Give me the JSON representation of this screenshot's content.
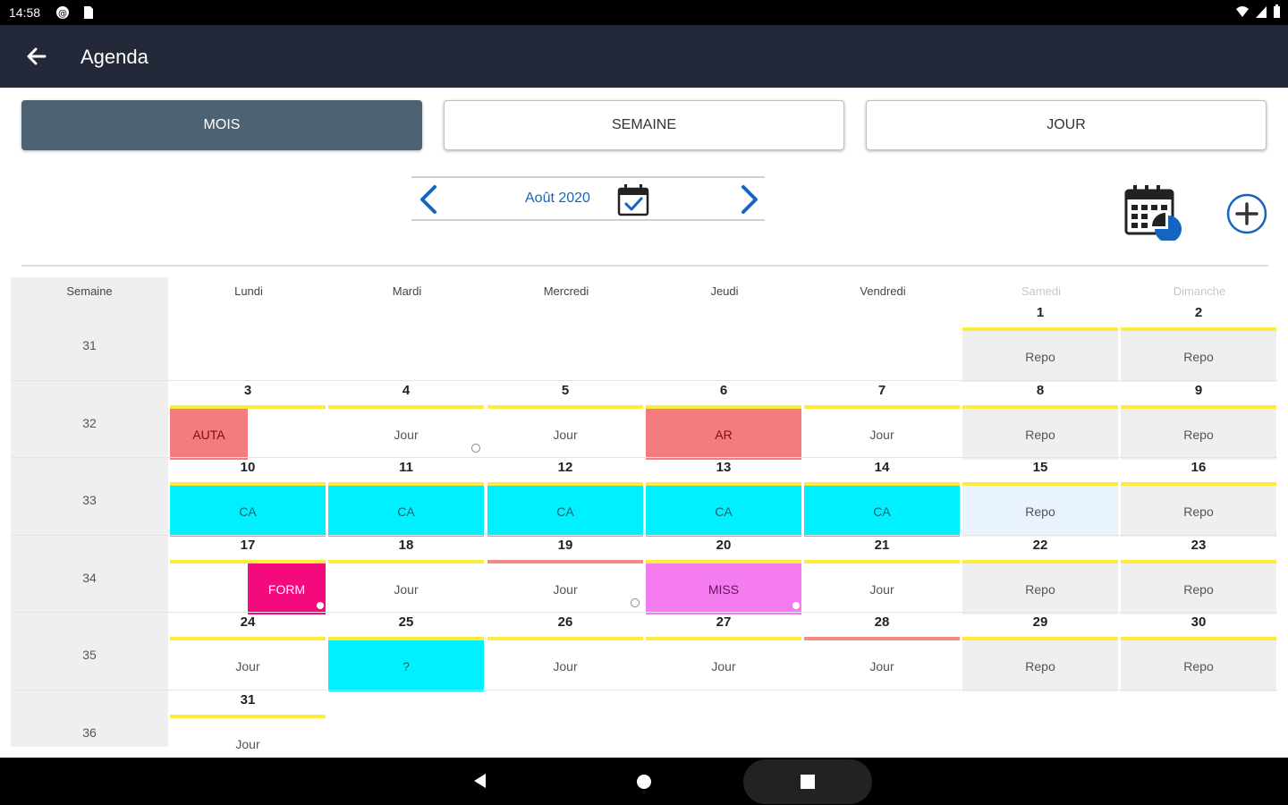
{
  "status_bar": {
    "time": "14:58",
    "icons": [
      "sync-icon",
      "sd-card-icon",
      "wifi-icon",
      "signal-icon",
      "battery-icon"
    ]
  },
  "app_bar": {
    "title": "Agenda",
    "back_icon": "arrow-back-icon"
  },
  "view_toggle": {
    "month": "MOIS",
    "week": "SEMAINE",
    "day": "JOUR",
    "active": "month"
  },
  "month_nav": {
    "label": "Août 2020"
  },
  "headers": {
    "week": "Semaine",
    "days": [
      "Lundi",
      "Mardi",
      "Mercredi",
      "Jeudi",
      "Vendredi",
      "Samedi",
      "Dimanche"
    ]
  },
  "colors": {
    "appbar": "#232938",
    "active_toggle": "#4d6272",
    "accent_blue": "#1565c0",
    "line_yellow": "#ffeb3b",
    "line_red": "#f28b82",
    "auta": "#f47c7c",
    "ar": "#f47c7c",
    "ca": "#00f0ff",
    "form": "#f50a7d",
    "miss": "#f57bf0",
    "repo_weekend": "#efefef",
    "repo_today": "#e8f3fd"
  },
  "weeks": [
    {
      "num": "31",
      "days": [
        null,
        null,
        null,
        null,
        null,
        {
          "day": "1",
          "label": "Repo",
          "line": "yellow",
          "bg": "#efefef"
        },
        {
          "day": "2",
          "label": "Repo",
          "line": "yellow",
          "bg": "#efefef"
        }
      ]
    },
    {
      "num": "32",
      "days": [
        {
          "day": "3",
          "label": "AUTA",
          "line": "yellow",
          "bg": "#f47c7c",
          "partial": "left",
          "text_color": "#7a1010"
        },
        {
          "day": "4",
          "label": "Jour",
          "line": "yellow",
          "bg": "#ffffff",
          "dot": true
        },
        {
          "day": "5",
          "label": "Jour",
          "line": "yellow",
          "bg": "#ffffff"
        },
        {
          "day": "6",
          "label": "AR",
          "line": "yellow",
          "bg": "#f47c7c",
          "text_color": "#7a1010"
        },
        {
          "day": "7",
          "label": "Jour",
          "line": "yellow",
          "bg": "#ffffff"
        },
        {
          "day": "8",
          "label": "Repo",
          "line": "yellow",
          "bg": "#efefef"
        },
        {
          "day": "9",
          "label": "Repo",
          "line": "yellow",
          "bg": "#efefef"
        }
      ]
    },
    {
      "num": "33",
      "days": [
        {
          "day": "10",
          "label": "CA",
          "line": "yellow",
          "bg": "#00f0ff",
          "text_color": "#1b5e66"
        },
        {
          "day": "11",
          "label": "CA",
          "line": "yellow",
          "bg": "#00f0ff",
          "text_color": "#1b5e66"
        },
        {
          "day": "12",
          "label": "CA",
          "line": "yellow",
          "bg": "#00f0ff",
          "text_color": "#1b5e66"
        },
        {
          "day": "13",
          "label": "CA",
          "line": "yellow",
          "bg": "#00f0ff",
          "text_color": "#1b5e66"
        },
        {
          "day": "14",
          "label": "CA",
          "line": "yellow",
          "bg": "#00f0ff",
          "text_color": "#1b5e66"
        },
        {
          "day": "15",
          "label": "Repo",
          "line": "yellow",
          "bg": "#e8f3fd"
        },
        {
          "day": "16",
          "label": "Repo",
          "line": "yellow",
          "bg": "#efefef"
        }
      ]
    },
    {
      "num": "34",
      "days": [
        {
          "day": "17",
          "label": "FORM",
          "line": "yellow",
          "bg": "#f50a7d",
          "partial": "right",
          "text_color": "#ffffff",
          "dot": "white"
        },
        {
          "day": "18",
          "label": "Jour",
          "line": "yellow",
          "bg": "#ffffff"
        },
        {
          "day": "19",
          "label": "Jour",
          "line": "red",
          "bg": "#ffffff",
          "dot": true
        },
        {
          "day": "20",
          "label": "MISS",
          "line": "yellow",
          "bg": "#f57bf0",
          "text_color": "#5a1a55",
          "dot": "white"
        },
        {
          "day": "21",
          "label": "Jour",
          "line": "yellow",
          "bg": "#ffffff"
        },
        {
          "day": "22",
          "label": "Repo",
          "line": "yellow",
          "bg": "#efefef"
        },
        {
          "day": "23",
          "label": "Repo",
          "line": "yellow",
          "bg": "#efefef"
        }
      ]
    },
    {
      "num": "35",
      "days": [
        {
          "day": "24",
          "label": "Jour",
          "line": "yellow",
          "bg": "#ffffff"
        },
        {
          "day": "25",
          "label": "?",
          "line": "yellow",
          "bg": "#00f0ff",
          "text_color": "#1b5e66"
        },
        {
          "day": "26",
          "label": "Jour",
          "line": "yellow",
          "bg": "#ffffff"
        },
        {
          "day": "27",
          "label": "Jour",
          "line": "yellow",
          "bg": "#ffffff"
        },
        {
          "day": "28",
          "label": "Jour",
          "line": "red",
          "bg": "#ffffff"
        },
        {
          "day": "29",
          "label": "Repo",
          "line": "yellow",
          "bg": "#efefef"
        },
        {
          "day": "30",
          "label": "Repo",
          "line": "yellow",
          "bg": "#efefef"
        }
      ]
    },
    {
      "num": "36",
      "days": [
        {
          "day": "31",
          "label": "Jour",
          "line": "yellow",
          "bg": "#ffffff"
        },
        null,
        null,
        null,
        null,
        null,
        null
      ]
    }
  ]
}
